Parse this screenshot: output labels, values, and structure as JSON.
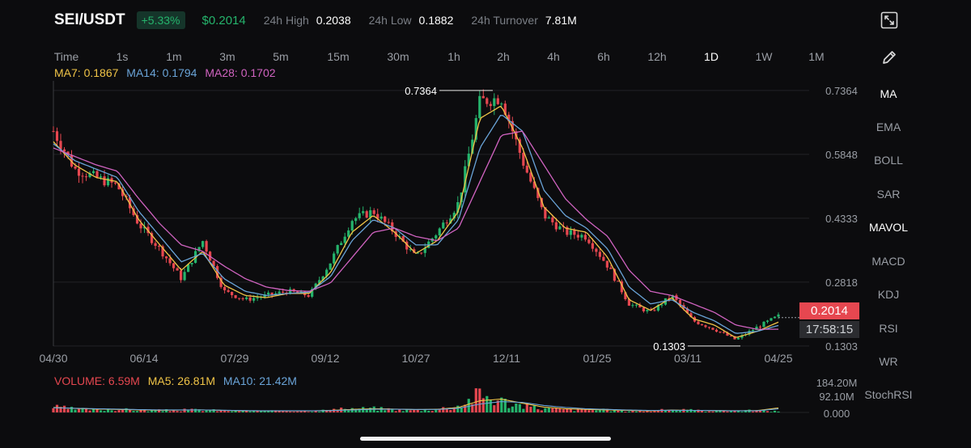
{
  "header": {
    "pair": "SEI/USDT",
    "change": "+5.33%",
    "price": "$0.2014",
    "high_label": "24h High",
    "high_value": "0.2038",
    "low_label": "24h Low",
    "low_value": "0.1882",
    "turnover_label": "24h Turnover",
    "turnover_value": "7.81M"
  },
  "timeframes": [
    {
      "label": "Time",
      "active": false
    },
    {
      "label": "1s",
      "active": false
    },
    {
      "label": "1m",
      "active": false
    },
    {
      "label": "3m",
      "active": false
    },
    {
      "label": "5m",
      "active": false
    },
    {
      "label": "15m",
      "active": false
    },
    {
      "label": "30m",
      "active": false
    },
    {
      "label": "1h",
      "active": false
    },
    {
      "label": "2h",
      "active": false
    },
    {
      "label": "4h",
      "active": false
    },
    {
      "label": "6h",
      "active": false
    },
    {
      "label": "12h",
      "active": false
    },
    {
      "label": "1D",
      "active": true
    },
    {
      "label": "1W",
      "active": false
    },
    {
      "label": "1M",
      "active": false
    }
  ],
  "indicators": [
    {
      "label": "MA",
      "active": true
    },
    {
      "label": "EMA",
      "active": false
    },
    {
      "label": "BOLL",
      "active": false
    },
    {
      "label": "SAR",
      "active": false
    },
    {
      "label": "MAVOL",
      "active": true
    },
    {
      "label": "MACD",
      "active": false
    },
    {
      "label": "KDJ",
      "active": false
    },
    {
      "label": "RSI",
      "active": false
    },
    {
      "label": "WR",
      "active": false
    },
    {
      "label": "StochRSI",
      "active": false
    }
  ],
  "ma_legend": {
    "ma7": "MA7: 0.1867",
    "ma14": "MA14: 0.1794",
    "ma28": "MA28: 0.1702"
  },
  "volume_legend": {
    "volume": "VOLUME: 6.59M",
    "ma5": "MA5: 26.81M",
    "ma10": "MA10: 21.42M"
  },
  "price_tag": "0.2014",
  "countdown": "17:58:15",
  "colors": {
    "up": "#25b46c",
    "down": "#e64750",
    "ma7": "#f0c447",
    "ma14": "#6aa4d8",
    "ma28": "#d063c0",
    "volume": "#e64750",
    "grid": "#222327"
  },
  "icons": {
    "fullscreen": "fullscreen-icon",
    "draw": "pencil-icon"
  },
  "chart_data": [
    {
      "type": "line",
      "title": "",
      "xlabel": "",
      "ylabel": "",
      "x_ticks": [
        "04/30",
        "06/14",
        "07/29",
        "09/12",
        "10/27",
        "12/11",
        "01/25",
        "03/11",
        "04/25"
      ],
      "y_ticks": [
        "0.7364",
        "0.5848",
        "0.4333",
        "0.2818",
        "0.1303"
      ],
      "ylim": [
        0.13,
        0.74
      ],
      "annotations": {
        "max": "0.7364",
        "min": "0.1303"
      },
      "series": [
        {
          "name": "MA7",
          "values": [
            0.615,
            0.56,
            0.53,
            0.52,
            0.43,
            0.37,
            0.31,
            0.355,
            0.275,
            0.25,
            0.245,
            0.255,
            0.255,
            0.305,
            0.4,
            0.44,
            0.4,
            0.35,
            0.38,
            0.45,
            0.67,
            0.7,
            0.6,
            0.46,
            0.41,
            0.4,
            0.34,
            0.24,
            0.215,
            0.245,
            0.195,
            0.18,
            0.15,
            0.165,
            0.187
          ]
        },
        {
          "name": "MA14",
          "values": [
            0.61,
            0.57,
            0.55,
            0.53,
            0.45,
            0.39,
            0.33,
            0.35,
            0.29,
            0.26,
            0.25,
            0.255,
            0.258,
            0.295,
            0.38,
            0.43,
            0.41,
            0.37,
            0.37,
            0.43,
            0.6,
            0.68,
            0.64,
            0.5,
            0.44,
            0.41,
            0.36,
            0.27,
            0.23,
            0.24,
            0.21,
            0.19,
            0.16,
            0.165,
            0.179
          ]
        },
        {
          "name": "MA28",
          "values": [
            0.6,
            0.58,
            0.56,
            0.545,
            0.48,
            0.42,
            0.37,
            0.355,
            0.32,
            0.29,
            0.27,
            0.262,
            0.26,
            0.28,
            0.34,
            0.4,
            0.41,
            0.39,
            0.38,
            0.41,
            0.52,
            0.63,
            0.64,
            0.56,
            0.48,
            0.43,
            0.39,
            0.31,
            0.26,
            0.25,
            0.23,
            0.21,
            0.18,
            0.17,
            0.17
          ]
        },
        {
          "name": "Price",
          "values": [
            0.64,
            0.55,
            0.53,
            0.51,
            0.42,
            0.36,
            0.29,
            0.38,
            0.26,
            0.24,
            0.25,
            0.26,
            0.25,
            0.33,
            0.43,
            0.45,
            0.4,
            0.34,
            0.4,
            0.47,
            0.71,
            0.72,
            0.57,
            0.44,
            0.4,
            0.39,
            0.32,
            0.23,
            0.21,
            0.25,
            0.19,
            0.17,
            0.145,
            0.175,
            0.2014
          ]
        }
      ]
    },
    {
      "type": "bar",
      "title": "",
      "y_ticks": [
        "184.20M",
        "92.10M",
        "0.000"
      ],
      "ylim": [
        0,
        184.2
      ],
      "series": [
        {
          "name": "VOLUME",
          "values": [
            32,
            20,
            16,
            18,
            14,
            12,
            14,
            16,
            10,
            9,
            8,
            9,
            9,
            14,
            22,
            24,
            18,
            14,
            20,
            40,
            110,
            70,
            40,
            24,
            18,
            16,
            14,
            10,
            8,
            18,
            12,
            10,
            9,
            12,
            6.59
          ]
        },
        {
          "name": "MA5",
          "values": [
            30,
            24,
            20,
            18,
            15,
            13,
            14,
            15,
            12,
            10,
            9,
            9,
            9,
            12,
            18,
            22,
            20,
            17,
            19,
            30,
            70,
            80,
            55,
            32,
            22,
            18,
            15,
            12,
            10,
            14,
            12,
            11,
            10,
            11,
            26.81
          ]
        },
        {
          "name": "MA10",
          "values": [
            28,
            25,
            22,
            20,
            17,
            15,
            15,
            15,
            13,
            11,
            10,
            10,
            10,
            11,
            15,
            19,
            19,
            18,
            18,
            25,
            50,
            65,
            60,
            42,
            30,
            22,
            18,
            14,
            12,
            13,
            12,
            11,
            10,
            10,
            21.42
          ]
        }
      ]
    }
  ]
}
